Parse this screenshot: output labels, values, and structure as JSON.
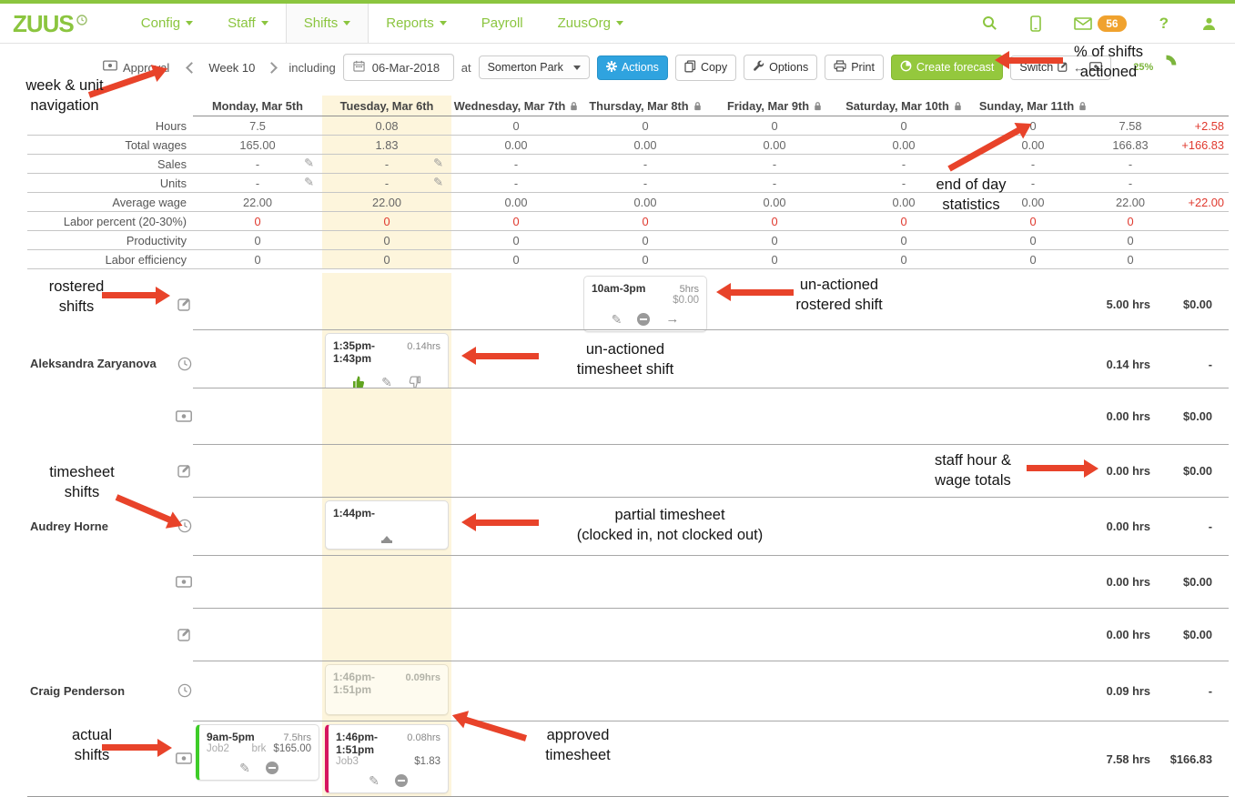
{
  "nav": {
    "brand": "ZUUS",
    "items": [
      {
        "label": "Config",
        "caret": true,
        "active": false
      },
      {
        "label": "Staff",
        "caret": true,
        "active": false
      },
      {
        "label": "Shifts",
        "caret": true,
        "active": true
      },
      {
        "label": "Reports",
        "caret": true,
        "active": false
      },
      {
        "label": "Payroll",
        "caret": false,
        "active": false
      },
      {
        "label": "ZuusOrg",
        "caret": true,
        "active": false
      }
    ],
    "message_count": "56",
    "help_label": "?"
  },
  "toolbar": {
    "approval_label": "Approval",
    "week_label": "Week 10",
    "including_label": "including",
    "date_value": "06-Mar-2018",
    "at_label": "at",
    "unit_label": "Somerton Park",
    "actions_label": "Actions",
    "copy_label": "Copy",
    "options_label": "Options",
    "print_label": "Print",
    "forecast_label": "Create forecast",
    "switch_label": "Switch",
    "actioned_percent": "25%"
  },
  "colors": {
    "brand_green": "#8bc53f",
    "badge_orange": "#f0a22e",
    "action_blue": "#2fa3df",
    "forecast_green": "#94c83d",
    "alert_red": "#e0392e",
    "today_bg": "#fdf5dc",
    "annotation_red": "#e8432a"
  },
  "grid": {
    "days": [
      {
        "label": "Monday, Mar 5th",
        "locked": false,
        "today": false
      },
      {
        "label": "Tuesday, Mar 6th",
        "locked": false,
        "today": true
      },
      {
        "label": "Wednesday, Mar 7th",
        "locked": true,
        "today": false
      },
      {
        "label": "Thursday, Mar 8th",
        "locked": true,
        "today": false
      },
      {
        "label": "Friday, Mar 9th",
        "locked": true,
        "today": false
      },
      {
        "label": "Saturday, Mar 10th",
        "locked": true,
        "today": false
      },
      {
        "label": "Sunday, Mar 11th",
        "locked": true,
        "today": false
      }
    ],
    "stats": [
      {
        "label": "Hours",
        "values": [
          "7.5",
          "0.08",
          "0",
          "0",
          "0",
          "0",
          "0"
        ],
        "total": "7.58",
        "delta": "+2.58",
        "red": false,
        "editable_days": []
      },
      {
        "label": "Total wages",
        "values": [
          "165.00",
          "1.83",
          "0.00",
          "0.00",
          "0.00",
          "0.00",
          "0.00"
        ],
        "total": "166.83",
        "delta": "+166.83",
        "red": false,
        "editable_days": []
      },
      {
        "label": "Sales",
        "values": [
          "-",
          "-",
          "-",
          "-",
          "-",
          "-",
          "-"
        ],
        "total": "-",
        "delta": "",
        "red": false,
        "editable_days": [
          0,
          1
        ]
      },
      {
        "label": "Units",
        "values": [
          "-",
          "-",
          "-",
          "-",
          "-",
          "-",
          "-"
        ],
        "total": "-",
        "delta": "",
        "red": false,
        "editable_days": [
          0,
          1
        ]
      },
      {
        "label": "Average wage",
        "values": [
          "22.00",
          "22.00",
          "0.00",
          "0.00",
          "0.00",
          "0.00",
          "0.00"
        ],
        "total": "22.00",
        "delta": "+22.00",
        "red": false,
        "editable_days": []
      },
      {
        "label": "Labor percent (20-30%)",
        "values": [
          "0",
          "0",
          "0",
          "0",
          "0",
          "0",
          "0"
        ],
        "total": "0",
        "delta": "",
        "red": true,
        "editable_days": []
      },
      {
        "label": "Productivity",
        "values": [
          "0",
          "0",
          "0",
          "0",
          "0",
          "0",
          "0"
        ],
        "total": "0",
        "delta": "",
        "red": false,
        "editable_days": []
      },
      {
        "label": "Labor efficiency",
        "values": [
          "0",
          "0",
          "0",
          "0",
          "0",
          "0",
          "0"
        ],
        "total": "0",
        "delta": "",
        "red": false,
        "editable_days": []
      }
    ],
    "staff": [
      {
        "name": "Aleksandra Zaryanova",
        "rows": [
          {
            "type": "rostered",
            "total_hours": "5.00 hrs",
            "total_wage": "$0.00",
            "cards": [
              {
                "day": 3,
                "kind": "rostered",
                "time": "10am-3pm",
                "hours": "5hrs",
                "wage": "$0.00",
                "actions": [
                  "pencil",
                  "minus",
                  "arrow-right"
                ]
              }
            ]
          },
          {
            "type": "timesheet",
            "total_hours": "0.14 hrs",
            "total_wage": "-",
            "cards": [
              {
                "day": 1,
                "kind": "timesheet",
                "time": "1:35pm-1:43pm",
                "hours": "0.14hrs",
                "actions": [
                  "thumbs-up",
                  "pencil",
                  "thumbs-down"
                ]
              }
            ]
          },
          {
            "type": "actual",
            "total_hours": "0.00 hrs",
            "total_wage": "$0.00",
            "cards": []
          }
        ]
      },
      {
        "name": "Audrey Horne",
        "rows": [
          {
            "type": "rostered",
            "total_hours": "0.00 hrs",
            "total_wage": "$0.00",
            "cards": []
          },
          {
            "type": "timesheet",
            "total_hours": "0.00 hrs",
            "total_wage": "-",
            "cards": [
              {
                "day": 1,
                "kind": "timesheet-partial",
                "time": "1:44pm-",
                "actions": [
                  "eject"
                ]
              }
            ]
          },
          {
            "type": "actual",
            "total_hours": "0.00 hrs",
            "total_wage": "$0.00",
            "cards": []
          }
        ]
      },
      {
        "name": "Craig Penderson",
        "rows": [
          {
            "type": "rostered",
            "total_hours": "0.00 hrs",
            "total_wage": "$0.00",
            "cards": []
          },
          {
            "type": "timesheet",
            "total_hours": "0.09 hrs",
            "total_wage": "-",
            "cards": [
              {
                "day": 1,
                "kind": "timesheet-faded",
                "time": "1:46pm-1:51pm",
                "hours": "0.09hrs",
                "actions": []
              }
            ]
          },
          {
            "type": "actual",
            "total_hours": "7.58 hrs",
            "total_wage": "$166.83",
            "cards": [
              {
                "day": 0,
                "kind": "actual",
                "accent": "#3ecc28",
                "time": "9am-5pm",
                "hours": "7.5hrs",
                "job": "Job2",
                "brk": "brk",
                "wage": "$165.00",
                "actions": [
                  "pencil",
                  "minus"
                ]
              },
              {
                "day": 1,
                "kind": "actual",
                "accent": "#d6155f",
                "time": "1:46pm-1:51pm",
                "hours": "0.08hrs",
                "job": "Job3",
                "wage": "$1.83",
                "actions": [
                  "pencil",
                  "minus"
                ]
              }
            ]
          }
        ]
      }
    ]
  },
  "annotations": {
    "week_nav": "week & unit\nnavigation",
    "pct_actioned": "% of shifts\nactioned",
    "end_of_day": "end of day\nstatistics",
    "rostered": "rostered\nshifts",
    "unactioned_rostered": "un-actioned\nrostered shift",
    "unactioned_timesheet": "un-actioned\ntimesheet shift",
    "timesheet": "timesheet\nshifts",
    "staff_totals": "staff hour &\nwage totals",
    "partial": "partial timesheet\n(clocked in, not clocked out)",
    "actual": "actual\nshifts",
    "approved": "approved\ntimesheet"
  }
}
